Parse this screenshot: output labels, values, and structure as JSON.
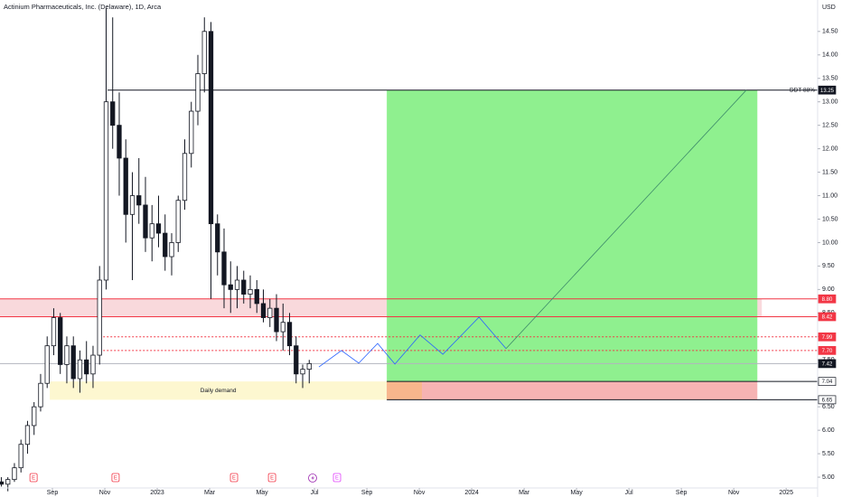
{
  "chart_data": {
    "type": "candlestick",
    "title": "Actinium Pharmaceuticals, Inc. (Delaware), 1D, Arca",
    "currency": "USD",
    "x": [
      -1.95,
      -1.7,
      -1.45,
      -1.2,
      -0.95,
      -0.7,
      -0.45,
      -0.2,
      0.05,
      0.3,
      0.55,
      0.8,
      1.05,
      1.3,
      1.55,
      1.8,
      2.05,
      2.3,
      2.55,
      2.8,
      3.05,
      3.3,
      3.55,
      3.8,
      4.05,
      4.3,
      4.55,
      4.8,
      5.05,
      5.3,
      5.55,
      5.8,
      6.05,
      6.3,
      6.55,
      6.8,
      7.05,
      7.3,
      7.55,
      7.8,
      8.05,
      8.3,
      8.55,
      8.8,
      9.05,
      9.3,
      9.55,
      9.8
    ],
    "open": [
      4.9,
      4.85,
      4.95,
      5.2,
      5.7,
      6.1,
      6.5,
      7.0,
      7.8,
      8.4,
      7.4,
      7.8,
      7.1,
      7.5,
      7.2,
      7.6,
      9.2,
      13.0,
      12.5,
      11.8,
      10.6,
      11.0,
      10.8,
      10.1,
      10.4,
      10.2,
      9.7,
      10.0,
      10.9,
      11.9,
      12.8,
      13.6,
      14.5,
      10.4,
      9.8,
      9.1,
      9.0,
      9.2,
      8.9,
      9.0,
      8.7,
      8.4,
      8.6,
      8.1,
      8.3,
      7.8,
      7.2,
      7.3
    ],
    "high": [
      5.0,
      5.0,
      5.3,
      5.8,
      6.2,
      6.6,
      7.2,
      8.0,
      8.6,
      8.5,
      8.0,
      8.0,
      7.7,
      7.9,
      7.8,
      9.5,
      15.0,
      14.8,
      13.2,
      12.2,
      11.5,
      11.8,
      11.4,
      10.8,
      11.0,
      10.6,
      10.2,
      11.0,
      12.2,
      13.0,
      14.0,
      14.8,
      14.7,
      10.6,
      10.3,
      9.6,
      9.5,
      9.4,
      9.3,
      9.2,
      9.0,
      8.8,
      8.9,
      8.7,
      8.5,
      8.0,
      7.4,
      7.5
    ],
    "low": [
      4.8,
      4.7,
      4.9,
      5.1,
      5.5,
      5.9,
      6.4,
      6.9,
      7.6,
      7.2,
      7.0,
      6.9,
      6.8,
      7.0,
      6.9,
      7.4,
      9.0,
      12.0,
      11.0,
      10.0,
      9.2,
      10.4,
      9.8,
      9.6,
      9.9,
      9.4,
      9.3,
      9.8,
      10.7,
      11.6,
      12.5,
      13.2,
      8.8,
      9.3,
      8.6,
      8.5,
      8.6,
      8.7,
      8.6,
      8.5,
      8.3,
      8.2,
      7.9,
      7.7,
      7.6,
      7.0,
      6.9,
      7.0
    ],
    "close": [
      4.85,
      4.95,
      5.2,
      5.7,
      6.1,
      6.5,
      7.0,
      7.8,
      8.4,
      7.4,
      7.8,
      7.1,
      7.5,
      7.2,
      7.6,
      9.2,
      13.0,
      12.5,
      11.8,
      10.6,
      11.0,
      10.8,
      10.1,
      10.4,
      10.2,
      9.7,
      10.0,
      10.9,
      11.9,
      12.8,
      13.6,
      14.5,
      10.4,
      9.8,
      9.1,
      9.0,
      9.2,
      8.9,
      9.0,
      8.7,
      8.4,
      8.6,
      8.1,
      8.3,
      7.8,
      7.2,
      7.3,
      7.42
    ],
    "xlim": [
      -2,
      29.2
    ],
    "xticks": [
      {
        "value": 0,
        "label": "Sep"
      },
      {
        "value": 2,
        "label": "Nov"
      },
      {
        "value": 4,
        "label": "2023"
      },
      {
        "value": 6,
        "label": "Mar"
      },
      {
        "value": 8,
        "label": "May"
      },
      {
        "value": 10,
        "label": "Jul"
      },
      {
        "value": 12,
        "label": "Sep"
      },
      {
        "value": 14,
        "label": "Nov"
      },
      {
        "value": 16,
        "label": "2024"
      },
      {
        "value": 18,
        "label": "Mar"
      },
      {
        "value": 20,
        "label": "May"
      },
      {
        "value": 22,
        "label": "Jul"
      },
      {
        "value": 24,
        "label": "Sep"
      },
      {
        "value": 26,
        "label": "Nov"
      },
      {
        "value": 28,
        "label": "2025"
      }
    ],
    "ylim": [
      4.77,
      15.17
    ],
    "yticks": [
      {
        "value": 5,
        "label": "5.00"
      },
      {
        "value": 5.5,
        "label": "5.50"
      },
      {
        "value": 6,
        "label": "6.00"
      },
      {
        "value": 6.5,
        "label": "6.50"
      },
      {
        "value": 7,
        "label": "7.00"
      },
      {
        "value": 7.5,
        "label": "7.50"
      },
      {
        "value": 8,
        "label": "8.00"
      },
      {
        "value": 8.5,
        "label": "8.50"
      },
      {
        "value": 9,
        "label": "9.00"
      },
      {
        "value": 9.5,
        "label": "9.50"
      },
      {
        "value": 10,
        "label": "10.00"
      },
      {
        "value": 10.5,
        "label": "10.50"
      },
      {
        "value": 11,
        "label": "11.00"
      },
      {
        "value": 11.5,
        "label": "11.50"
      },
      {
        "value": 12,
        "label": "12.00"
      },
      {
        "value": 12.5,
        "label": "12.50"
      },
      {
        "value": 13,
        "label": "13.00"
      },
      {
        "value": 13.5,
        "label": "13.50"
      },
      {
        "value": 14,
        "label": "14.00"
      },
      {
        "value": 14.5,
        "label": "14.50"
      }
    ],
    "zones": [
      {
        "x": [
          -2,
          27.07
        ],
        "y": [
          8.42,
          8.8
        ],
        "color": "#f9d9dc"
      },
      {
        "x": [
          -0.1,
          12.76
        ],
        "y": [
          6.65,
          7.04
        ],
        "color": "#fdf7d0",
        "name": "Daily demand"
      },
      {
        "x": [
          12.76,
          26.9
        ],
        "y": [
          7.04,
          13.25
        ],
        "color": "#8ff08f"
      },
      {
        "x": [
          12.76,
          26.9
        ],
        "y": [
          6.65,
          7.04
        ],
        "color": "#f6b3b3"
      },
      {
        "x": [
          12.76,
          14.1
        ],
        "y": [
          6.65,
          7.04
        ],
        "color": "#f8b68c"
      }
    ],
    "levels": [
      {
        "value": 13.25,
        "label": "13.25",
        "name": "DDT 88%",
        "color": "#131722",
        "style": "solid",
        "tag": "dark",
        "start": 2.1
      },
      {
        "value": 8.8,
        "label": "8.80",
        "color": "#f23645",
        "style": "solid",
        "tag": "red",
        "start": -2
      },
      {
        "value": 8.42,
        "label": "8.42",
        "color": "#f23645",
        "style": "solid",
        "tag": "red",
        "start": -2
      },
      {
        "value": 7.99,
        "label": "7.99",
        "color": "#f23645",
        "style": "dotted",
        "tag": "red",
        "start": 1.8
      },
      {
        "value": 7.7,
        "label": "7.70",
        "color": "#f23645",
        "style": "dotted",
        "tag": "red",
        "start": 1.8
      },
      {
        "value": 7.42,
        "label": "7.42",
        "color": "#b2b5be",
        "style": "solid",
        "tag": "dark",
        "start": -2
      },
      {
        "value": 7.04,
        "label": "7.04",
        "color": "#131722",
        "style": "solid",
        "tag": "light",
        "start": 12.76
      },
      {
        "value": 6.65,
        "label": "6.65",
        "color": "#131722",
        "style": "solid",
        "tag": "light",
        "start": 12.76
      }
    ],
    "lines": [
      {
        "color": "#2962ff",
        "x": [
          10.17,
          11.03,
          11.69,
          12.41,
          13.07,
          14.03,
          14.9,
          16.28,
          17.31
        ],
        "y": [
          7.35,
          7.7,
          7.43,
          7.85,
          7.41,
          8.03,
          7.62,
          8.41,
          7.74
        ]
      },
      {
        "color": "#3d8b6a",
        "x": [
          17.31,
          26.48
        ],
        "y": [
          7.74,
          13.25
        ]
      }
    ],
    "events": [
      {
        "x": -0.72,
        "label": "E",
        "color": "#f23645"
      },
      {
        "x": 2.41,
        "label": "E",
        "color": "#f23645"
      },
      {
        "x": 6.93,
        "label": "E",
        "color": "#f23645"
      },
      {
        "x": 8.38,
        "label": "E",
        "color": "#f23645"
      },
      {
        "x": 10.86,
        "label": "E",
        "color": "#e040fb"
      }
    ]
  }
}
